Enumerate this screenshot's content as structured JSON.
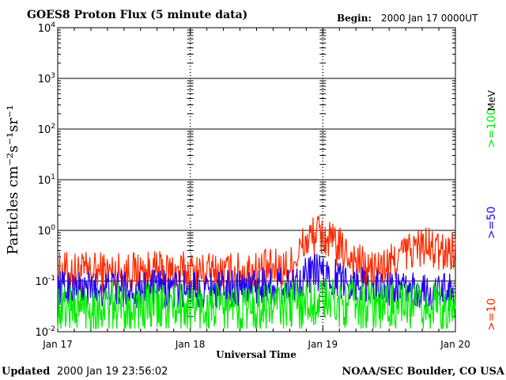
{
  "chart_data": {
    "type": "line",
    "title": "GOES8 Proton Flux (5 minute data)",
    "begin_label": "Begin:",
    "begin_value": "2000 Jan 17 0000UT",
    "ylabel": "Particles cm⁻²s⁻¹sr⁻¹",
    "xlabel": "Universal Time",
    "y_scale": "log",
    "ylim": [
      0.01,
      10000
    ],
    "y_ticks": [
      {
        "base": "10",
        "exp": "4"
      },
      {
        "base": "10",
        "exp": "3"
      },
      {
        "base": "10",
        "exp": "2"
      },
      {
        "base": "10",
        "exp": "1"
      },
      {
        "base": "10",
        "exp": "0"
      },
      {
        "base": "10",
        "exp": "-1"
      },
      {
        "base": "10",
        "exp": "-2"
      }
    ],
    "x_ticks": [
      "Jan 17",
      "Jan 18",
      "Jan 19",
      "Jan 20"
    ],
    "xlim_days": [
      0,
      3
    ],
    "grid": true,
    "legend": [
      {
        "label": ">=10",
        "color": "#ff2a00"
      },
      {
        "label": ">=50",
        "color": "#2200ee"
      },
      {
        "label": ">=100",
        "color": "#00ee00"
      }
    ],
    "legend_unit": "MeV",
    "series": [
      {
        "name": ">=10",
        "color": "#ff2a00",
        "x": [
          0,
          0.25,
          0.5,
          0.75,
          1,
          1.25,
          1.5,
          1.75,
          1.85,
          1.95,
          2.05,
          2.15,
          2.25,
          2.35,
          2.5,
          2.6,
          2.75,
          2.9,
          3
        ],
        "values": [
          0.15,
          0.15,
          0.15,
          0.15,
          0.15,
          0.14,
          0.16,
          0.18,
          0.5,
          0.9,
          0.6,
          0.4,
          0.25,
          0.15,
          0.2,
          0.35,
          0.5,
          0.35,
          0.45
        ]
      },
      {
        "name": ">=50",
        "color": "#2200ee",
        "x": [
          0,
          0.25,
          0.5,
          0.75,
          1,
          1.25,
          1.5,
          1.75,
          1.85,
          1.95,
          2.05,
          2.2,
          2.35,
          2.5,
          2.75,
          3
        ],
        "values": [
          0.07,
          0.07,
          0.07,
          0.07,
          0.07,
          0.07,
          0.08,
          0.08,
          0.12,
          0.15,
          0.12,
          0.1,
          0.08,
          0.07,
          0.06,
          0.06
        ]
      },
      {
        "name": ">=100",
        "color": "#00ee00",
        "x": [
          0,
          0.5,
          1,
          1.5,
          1.85,
          2,
          2.3,
          2.6,
          3
        ],
        "values": [
          0.03,
          0.03,
          0.03,
          0.03,
          0.035,
          0.04,
          0.035,
          0.03,
          0.03
        ]
      }
    ]
  },
  "footer": {
    "updated_label": "Updated",
    "updated_value": "2000 Jan 19 23:56:02",
    "credit": "NOAA/SEC Boulder, CO USA"
  }
}
